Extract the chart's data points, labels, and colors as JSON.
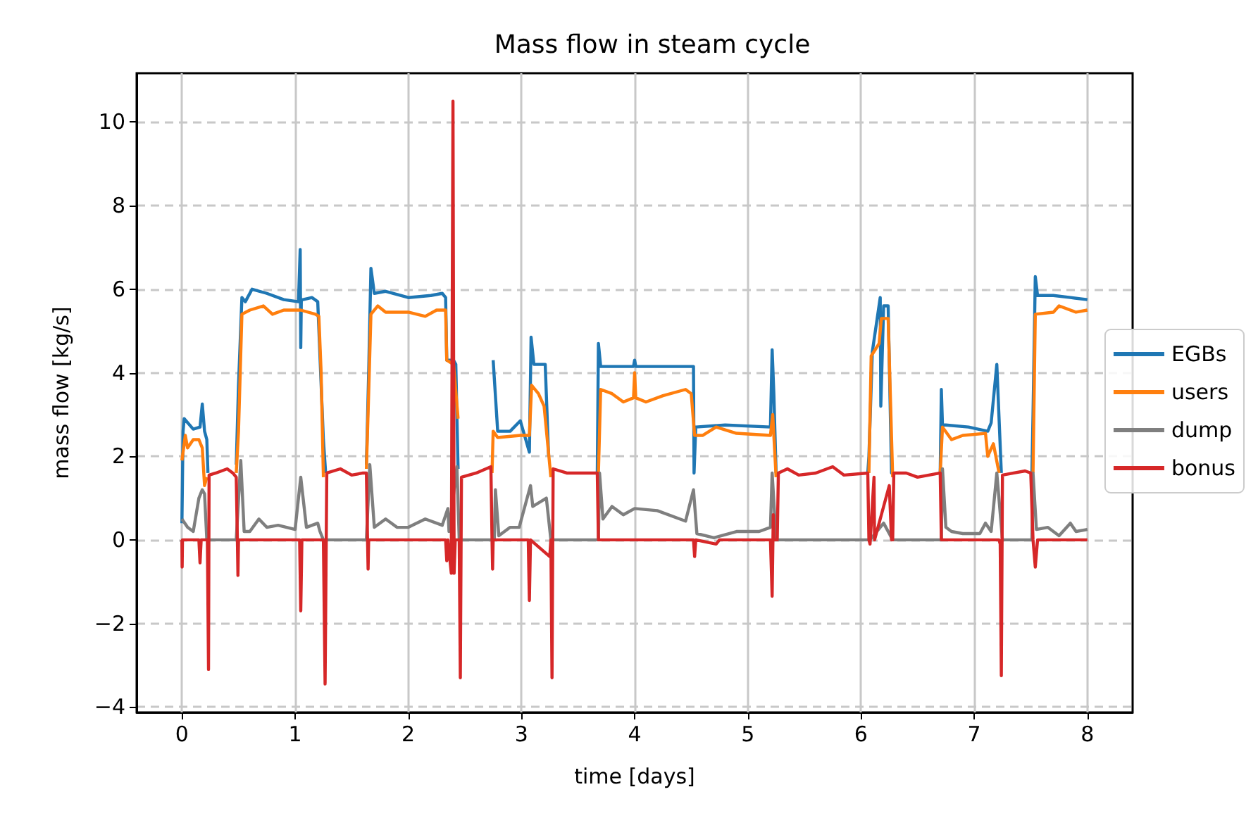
{
  "chart_data": {
    "type": "line",
    "title": "Mass flow in steam cycle",
    "xlabel": "time [days]",
    "ylabel": "mass flow [kg/s]",
    "xlim": [
      -0.4,
      8.4
    ],
    "ylim": [
      -4.13,
      11.17
    ],
    "xticks": [
      0,
      1,
      2,
      3,
      4,
      5,
      6,
      7,
      8
    ],
    "yticks": [
      -4,
      -2,
      0,
      2,
      4,
      6,
      8,
      10
    ],
    "grid": true,
    "legend": "right",
    "marker": "none",
    "line_style": "solid",
    "series": [
      {
        "name": "EGBs",
        "color": "#1f77b4",
        "x": [
          0,
          0.01,
          0.02,
          0.1,
          0.16,
          0.18,
          0.2,
          0.22,
          0.23,
          0.3,
          0.48,
          0.5,
          0.53,
          0.56,
          0.62,
          0.75,
          0.9,
          1.03,
          1.045,
          1.05,
          1.055,
          1.07,
          1.15,
          1.2,
          1.25,
          1.27,
          1.3,
          1.63,
          1.65,
          1.67,
          1.7,
          1.8,
          2.0,
          2.2,
          2.3,
          2.33,
          2.34,
          2.4,
          2.42,
          2.44,
          2.5,
          2.74,
          2.75,
          2.79,
          2.9,
          2.99,
          3.07,
          3.085,
          3.11,
          3.21,
          3.24,
          3.26,
          3.3,
          3.67,
          3.68,
          3.7,
          3.85,
          3.99,
          4.0,
          4.01,
          4.3,
          4.52,
          4.525,
          4.54,
          4.8,
          5.2,
          5.215,
          5.23,
          5.25,
          5.3,
          6.06,
          6.07,
          6.1,
          6.17,
          6.175,
          6.2,
          6.24,
          6.27,
          6.28,
          6.3,
          6.7,
          6.71,
          6.72,
          6.75,
          6.95,
          7.12,
          7.15,
          7.2,
          7.24,
          7.3,
          7.51,
          7.52,
          7.54,
          7.56,
          7.7,
          7.85,
          8.0
        ],
        "values": [
          0.4,
          2.6,
          2.9,
          2.65,
          2.7,
          3.25,
          2.6,
          2.4,
          1.6,
          null,
          1.8,
          3.7,
          5.8,
          5.7,
          6.0,
          5.9,
          5.75,
          5.7,
          6.95,
          4.6,
          5.75,
          5.75,
          5.8,
          5.7,
          2.4,
          1.6,
          null,
          1.8,
          4.0,
          6.5,
          5.9,
          5.95,
          5.8,
          5.85,
          5.9,
          5.8,
          4.3,
          4.3,
          4.2,
          1.7,
          null,
          null,
          4.3,
          2.6,
          2.6,
          2.85,
          2.1,
          4.85,
          4.2,
          4.2,
          2.0,
          null,
          null,
          1.6,
          4.7,
          4.15,
          4.15,
          4.15,
          4.3,
          4.15,
          4.15,
          4.15,
          1.6,
          2.7,
          2.75,
          2.7,
          4.55,
          3.5,
          1.6,
          null,
          1.6,
          2.0,
          4.5,
          5.8,
          3.2,
          5.6,
          5.6,
          1.6,
          1.6,
          null,
          1.6,
          3.6,
          2.75,
          2.75,
          2.7,
          2.6,
          2.8,
          4.2,
          1.6,
          null,
          1.6,
          3.0,
          6.3,
          5.85,
          5.85,
          5.8,
          5.75
        ]
      },
      {
        "name": "users",
        "color": "#ff7f0e",
        "x": [
          0,
          0.02,
          0.03,
          0.05,
          0.1,
          0.15,
          0.18,
          0.2,
          0.22,
          0.3,
          0.48,
          0.5,
          0.53,
          0.6,
          0.72,
          0.8,
          0.9,
          1.05,
          1.18,
          1.21,
          1.23,
          1.25,
          1.3,
          1.63,
          1.65,
          1.67,
          1.73,
          1.8,
          2.0,
          2.15,
          2.25,
          2.33,
          2.34,
          2.4,
          2.44,
          2.5,
          2.74,
          2.75,
          2.79,
          2.99,
          3.07,
          3.09,
          3.15,
          3.2,
          3.26,
          3.3,
          3.67,
          3.68,
          3.7,
          3.8,
          3.9,
          3.99,
          4.0,
          4.01,
          4.1,
          4.25,
          4.45,
          4.5,
          4.53,
          4.6,
          4.72,
          4.9,
          5.2,
          5.22,
          5.25,
          5.3,
          6.07,
          6.09,
          6.16,
          6.18,
          6.24,
          6.28,
          6.3,
          6.7,
          6.72,
          6.8,
          6.9,
          7.1,
          7.12,
          7.17,
          7.22,
          7.3,
          7.52,
          7.54,
          7.7,
          7.75,
          7.9,
          8.0
        ],
        "values": [
          1.9,
          2.3,
          2.5,
          2.2,
          2.4,
          2.4,
          2.2,
          1.3,
          1.5,
          null,
          1.6,
          2.6,
          5.4,
          5.5,
          5.6,
          5.4,
          5.5,
          5.5,
          5.4,
          5.35,
          4.0,
          1.5,
          null,
          1.7,
          3.5,
          5.4,
          5.6,
          5.45,
          5.45,
          5.35,
          5.5,
          5.5,
          4.3,
          4.2,
          2.9,
          null,
          1.6,
          2.6,
          2.45,
          2.5,
          2.5,
          3.7,
          3.5,
          3.2,
          1.5,
          null,
          1.6,
          1.6,
          3.6,
          3.5,
          3.3,
          3.4,
          4.0,
          3.4,
          3.3,
          3.45,
          3.6,
          3.5,
          2.5,
          2.5,
          2.7,
          2.55,
          2.5,
          3.0,
          1.5,
          null,
          1.6,
          4.4,
          4.7,
          5.3,
          5.3,
          1.5,
          null,
          1.6,
          2.7,
          2.4,
          2.5,
          2.55,
          2.0,
          2.3,
          1.6,
          null,
          1.6,
          5.4,
          5.45,
          5.6,
          5.45,
          5.5
        ]
      },
      {
        "name": "dump",
        "color": "#7f7f7f",
        "x": [
          0,
          0.05,
          0.1,
          0.15,
          0.18,
          0.2,
          0.22,
          0.48,
          0.52,
          0.55,
          0.6,
          0.68,
          0.75,
          0.85,
          1.0,
          1.05,
          1.1,
          1.2,
          1.22,
          1.25,
          1.63,
          1.66,
          1.7,
          1.8,
          1.9,
          2.0,
          2.15,
          2.3,
          2.35,
          2.36,
          2.43,
          2.45,
          2.76,
          2.77,
          2.8,
          2.9,
          2.98,
          3.08,
          3.1,
          3.22,
          3.26,
          3.68,
          3.69,
          3.72,
          3.8,
          3.9,
          4.0,
          4.2,
          4.45,
          4.52,
          4.55,
          4.7,
          4.9,
          5.1,
          5.2,
          5.215,
          5.25,
          6.08,
          6.2,
          6.28,
          6.71,
          6.72,
          6.75,
          6.8,
          6.9,
          7.05,
          7.1,
          7.15,
          7.2,
          7.25,
          7.51,
          7.52,
          7.55,
          7.65,
          7.75,
          7.85,
          7.9,
          8.0
        ],
        "values": [
          0.5,
          0.3,
          0.2,
          1.0,
          1.2,
          1.1,
          0,
          0,
          1.9,
          0.2,
          0.2,
          0.5,
          0.3,
          0.35,
          0.25,
          1.5,
          0.3,
          0.4,
          0.2,
          0,
          0,
          1.8,
          0.3,
          0.5,
          0.3,
          0.3,
          0.5,
          0.35,
          0.75,
          0.2,
          1.75,
          0,
          0,
          1.2,
          0.1,
          0.3,
          0.3,
          1.3,
          0.8,
          1.0,
          0,
          0,
          1.6,
          0.5,
          0.8,
          0.6,
          0.75,
          0.7,
          0.45,
          1.2,
          0.15,
          0.05,
          0.2,
          0.2,
          0.3,
          1.6,
          0,
          0,
          0.4,
          0,
          0,
          1.7,
          0.3,
          0.2,
          0.15,
          0.15,
          0.4,
          0.2,
          1.6,
          0,
          0,
          1.6,
          0.25,
          0.3,
          0.1,
          0.4,
          0.2,
          0.25
        ]
      },
      {
        "name": "bonus",
        "color": "#d62728",
        "x": [
          0,
          0.002,
          0.005,
          0.15,
          0.16,
          0.17,
          0.225,
          0.235,
          0.24,
          0.3,
          0.4,
          0.45,
          0.48,
          0.49,
          0.495,
          0.5,
          1.04,
          1.05,
          1.06,
          1.25,
          1.265,
          1.28,
          1.4,
          1.5,
          1.6,
          1.63,
          1.64,
          1.645,
          1.65,
          2.33,
          2.34,
          2.35,
          2.38,
          2.395,
          2.405,
          2.415,
          2.45,
          2.46,
          2.47,
          2.6,
          2.73,
          2.74,
          2.745,
          2.75,
          3.06,
          3.07,
          3.08,
          3.25,
          3.26,
          3.27,
          3.28,
          3.4,
          3.5,
          3.67,
          3.68,
          4.52,
          4.53,
          4.54,
          4.72,
          4.75,
          5.2,
          5.215,
          5.225,
          5.23,
          5.26,
          5.27,
          5.35,
          5.45,
          5.6,
          5.75,
          5.85,
          6.06,
          6.07,
          6.08,
          6.115,
          6.12,
          6.125,
          6.25,
          6.27,
          6.28,
          6.29,
          6.4,
          6.5,
          6.7,
          6.71,
          7.22,
          7.23,
          7.24,
          7.25,
          7.35,
          7.45,
          7.5,
          7.52,
          7.54,
          7.56,
          8.0
        ],
        "values": [
          0,
          -0.65,
          0,
          0,
          -0.55,
          0,
          0,
          -3.1,
          1.55,
          1.6,
          1.7,
          1.6,
          1.5,
          0,
          -0.85,
          0,
          0,
          -1.7,
          0,
          0,
          -3.45,
          1.6,
          1.7,
          1.55,
          1.6,
          1.6,
          0,
          -0.7,
          0,
          0,
          -0.5,
          0,
          -0.8,
          10.5,
          -0.8,
          0,
          0,
          -3.3,
          1.5,
          1.6,
          1.75,
          0,
          -0.7,
          0,
          0,
          -1.45,
          0,
          -0.4,
          0,
          -3.3,
          1.7,
          1.6,
          1.6,
          1.6,
          0,
          0,
          -0.4,
          0,
          -0.1,
          0,
          0,
          -1.35,
          0.6,
          0,
          0,
          1.6,
          1.7,
          1.55,
          1.6,
          1.75,
          1.55,
          1.6,
          0,
          -0.1,
          1.5,
          0,
          0,
          1.3,
          0,
          0,
          1.6,
          1.6,
          1.5,
          1.6,
          0,
          0,
          -0.1,
          -3.25,
          1.55,
          1.6,
          1.65,
          1.6,
          0,
          -0.65,
          0,
          0
        ]
      }
    ]
  }
}
